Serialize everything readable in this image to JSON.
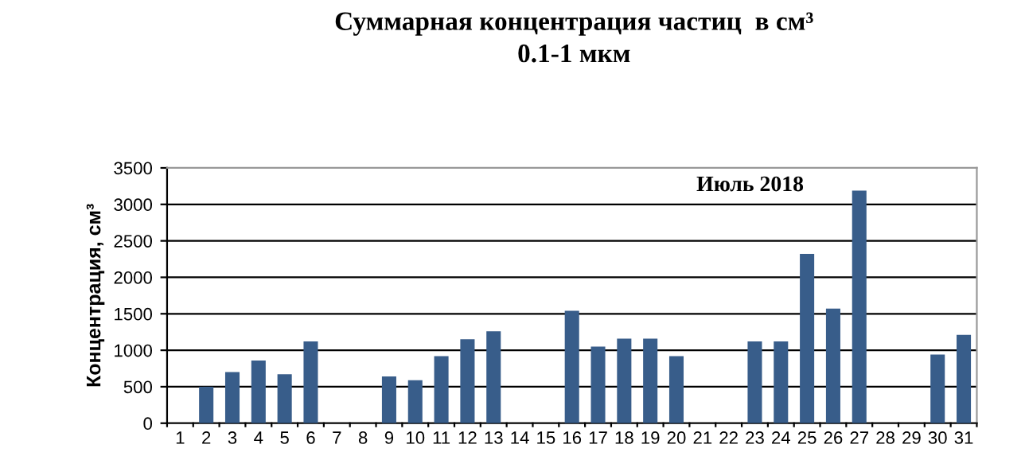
{
  "chart_data": {
    "type": "bar",
    "title": "Суммарная концентрация частиц  в см³",
    "subtitle": "0.1-1 мкм",
    "ylabel": "Концентрация, см³",
    "annotations": [
      "Июль 2018"
    ],
    "categories": [
      "1",
      "2",
      "3",
      "4",
      "5",
      "6",
      "7",
      "8",
      "9",
      "10",
      "11",
      "12",
      "13",
      "14",
      "15",
      "16",
      "17",
      "18",
      "19",
      "20",
      "21",
      "22",
      "23",
      "24",
      "25",
      "26",
      "27",
      "28",
      "29",
      "30",
      "31"
    ],
    "values": [
      null,
      500,
      700,
      860,
      670,
      1120,
      null,
      null,
      640,
      590,
      920,
      1150,
      1260,
      null,
      null,
      1540,
      1050,
      1160,
      1160,
      920,
      null,
      null,
      1120,
      1120,
      2320,
      1570,
      3190,
      null,
      null,
      940,
      1210
    ],
    "color": "#385d8a",
    "ylim": [
      0,
      3500
    ],
    "yticks": [
      0,
      500,
      1000,
      1500,
      2000,
      2500,
      3000,
      3500
    ],
    "grid": "y"
  }
}
